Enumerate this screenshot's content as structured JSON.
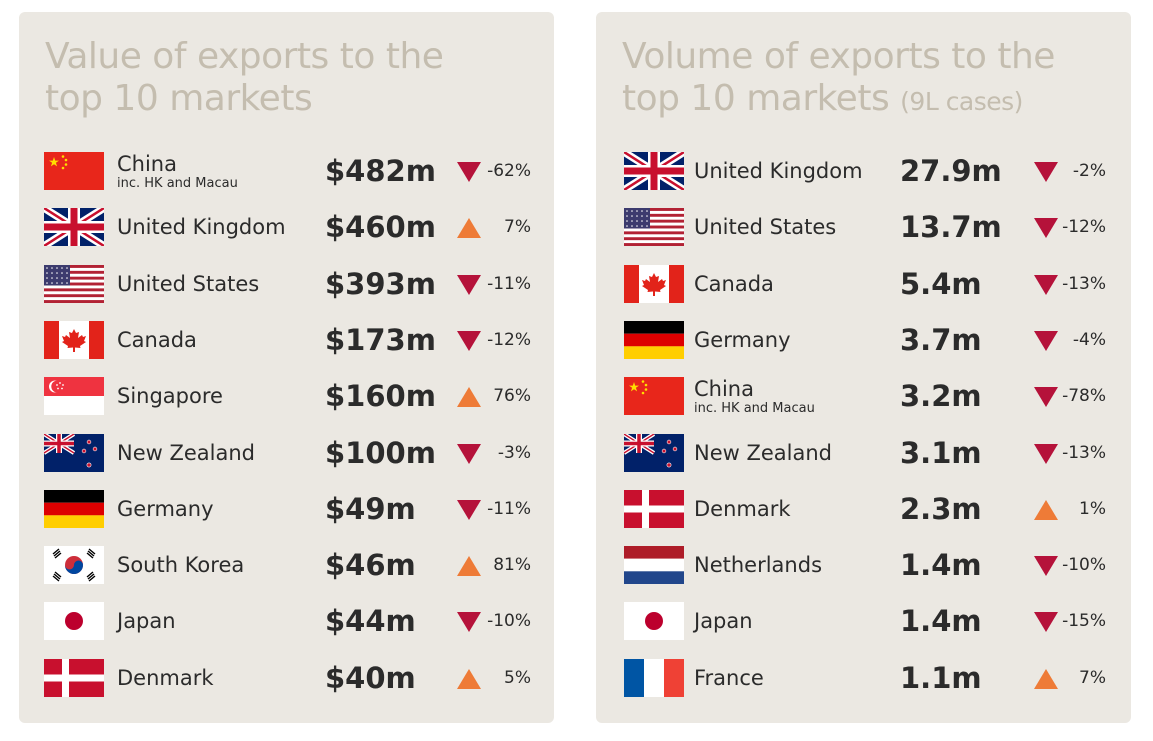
{
  "colors": {
    "panel_bg": "#ebe8e2",
    "title": "#c4bdaf",
    "text": "#2b2b2b",
    "down": "#b5123a",
    "up": "#ee7b37"
  },
  "chart_data": [
    {
      "type": "table",
      "title": "Value of exports to the top 10 markets",
      "title_line1": "Value of exports to the",
      "title_line2": "top 10 markets",
      "columns": [
        "country",
        "value",
        "change"
      ],
      "rows": [
        {
          "flag": "china-flag-icon",
          "country": "China",
          "note": "inc. HK and Macau",
          "value_text": "$482m",
          "value": 482,
          "unit": "$m",
          "change_text": "-62%",
          "change": -62,
          "direction": "down"
        },
        {
          "flag": "uk-flag-icon",
          "country": "United Kingdom",
          "value_text": "$460m",
          "value": 460,
          "unit": "$m",
          "change_text": "7%",
          "change": 7,
          "direction": "up"
        },
        {
          "flag": "usa-flag-icon",
          "country": "United States",
          "value_text": "$393m",
          "value": 393,
          "unit": "$m",
          "change_text": "-11%",
          "change": -11,
          "direction": "down"
        },
        {
          "flag": "canada-flag-icon",
          "country": "Canada",
          "value_text": "$173m",
          "value": 173,
          "unit": "$m",
          "change_text": "-12%",
          "change": -12,
          "direction": "down"
        },
        {
          "flag": "singapore-flag-icon",
          "country": "Singapore",
          "value_text": "$160m",
          "value": 160,
          "unit": "$m",
          "change_text": "76%",
          "change": 76,
          "direction": "up"
        },
        {
          "flag": "new-zealand-flag-icon",
          "country": "New Zealand",
          "value_text": "$100m",
          "value": 100,
          "unit": "$m",
          "change_text": "-3%",
          "change": -3,
          "direction": "down"
        },
        {
          "flag": "germany-flag-icon",
          "country": "Germany",
          "value_text": "$49m",
          "value": 49,
          "unit": "$m",
          "change_text": "-11%",
          "change": -11,
          "direction": "down"
        },
        {
          "flag": "south-korea-flag-icon",
          "country": "South Korea",
          "value_text": "$46m",
          "value": 46,
          "unit": "$m",
          "change_text": "81%",
          "change": 81,
          "direction": "up"
        },
        {
          "flag": "japan-flag-icon",
          "country": "Japan",
          "value_text": "$44m",
          "value": 44,
          "unit": "$m",
          "change_text": "-10%",
          "change": -10,
          "direction": "down"
        },
        {
          "flag": "denmark-flag-icon",
          "country": "Denmark",
          "value_text": "$40m",
          "value": 40,
          "unit": "$m",
          "change_text": "5%",
          "change": 5,
          "direction": "up"
        }
      ]
    },
    {
      "type": "table",
      "title": "Volume of exports to the top 10 markets (9L cases)",
      "title_line1": "Volume of exports to the",
      "title_line2": "top 10 markets",
      "title_unit": "(9L cases)",
      "columns": [
        "country",
        "volume",
        "change"
      ],
      "rows": [
        {
          "flag": "uk-flag-icon",
          "country": "United Kingdom",
          "value_text": "27.9m",
          "value": 27.9,
          "unit": "m 9L cases",
          "change_text": "-2%",
          "change": -2,
          "direction": "down"
        },
        {
          "flag": "usa-flag-icon",
          "country": "United States",
          "value_text": "13.7m",
          "value": 13.7,
          "unit": "m 9L cases",
          "change_text": "-12%",
          "change": -12,
          "direction": "down"
        },
        {
          "flag": "canada-flag-icon",
          "country": "Canada",
          "value_text": "5.4m",
          "value": 5.4,
          "unit": "m 9L cases",
          "change_text": "-13%",
          "change": -13,
          "direction": "down"
        },
        {
          "flag": "germany-flag-icon",
          "country": "Germany",
          "value_text": "3.7m",
          "value": 3.7,
          "unit": "m 9L cases",
          "change_text": "-4%",
          "change": -4,
          "direction": "down"
        },
        {
          "flag": "china-flag-icon",
          "country": "China",
          "note": "inc. HK and Macau",
          "value_text": "3.2m",
          "value": 3.2,
          "unit": "m 9L cases",
          "change_text": "-78%",
          "change": -78,
          "direction": "down"
        },
        {
          "flag": "new-zealand-flag-icon",
          "country": "New Zealand",
          "value_text": "3.1m",
          "value": 3.1,
          "unit": "m 9L cases",
          "change_text": "-13%",
          "change": -13,
          "direction": "down"
        },
        {
          "flag": "denmark-flag-icon",
          "country": "Denmark",
          "value_text": "2.3m",
          "value": 2.3,
          "unit": "m 9L cases",
          "change_text": "1%",
          "change": 1,
          "direction": "up"
        },
        {
          "flag": "netherlands-flag-icon",
          "country": "Netherlands",
          "value_text": "1.4m",
          "value": 1.4,
          "unit": "m 9L cases",
          "change_text": "-10%",
          "change": -10,
          "direction": "down"
        },
        {
          "flag": "japan-flag-icon",
          "country": "Japan",
          "value_text": "1.4m",
          "value": 1.4,
          "unit": "m 9L cases",
          "change_text": "-15%",
          "change": -15,
          "direction": "down"
        },
        {
          "flag": "france-flag-icon",
          "country": "France",
          "value_text": "1.1m",
          "value": 1.1,
          "unit": "m 9L cases",
          "change_text": "7%",
          "change": 7,
          "direction": "up"
        }
      ]
    }
  ]
}
